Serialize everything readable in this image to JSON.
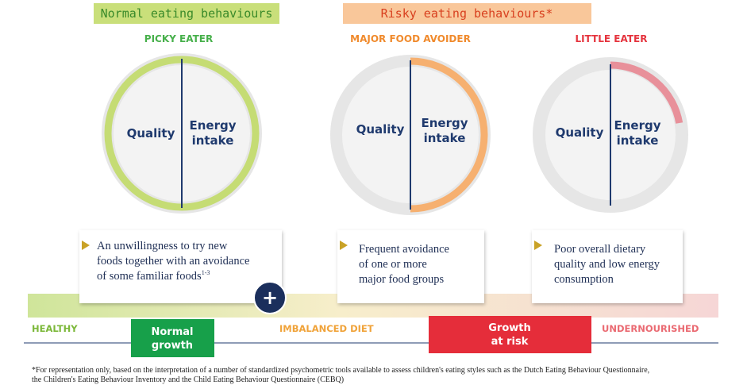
{
  "banners": {
    "normal": "Normal eating behaviours",
    "risky": "Risky eating behaviours*"
  },
  "profiles": [
    {
      "title": "PICKY EATER",
      "quality": "Quality",
      "energy": [
        "Energy",
        "intake"
      ],
      "description": [
        "An unwillingness to try new",
        "foods together with an avoidance",
        "of some familiar foods"
      ],
      "superscript": "1-3"
    },
    {
      "title": "MAJOR FOOD AVOIDER",
      "quality": "Quality",
      "energy": [
        "Energy",
        "intake"
      ],
      "description": [
        "Frequent avoidance",
        "of one or more",
        "major food groups"
      ]
    },
    {
      "title": "LITTLE EATER",
      "quality": "Quality",
      "energy": [
        "Energy",
        "intake"
      ],
      "description": [
        "Poor overall dietary",
        "quality and low energy",
        "consumption"
      ]
    }
  ],
  "plus": "+",
  "scale": {
    "healthy": "HEALTHY",
    "normal_growth": [
      "Normal",
      "growth"
    ],
    "imbalanced": "IMBALANCED DIET",
    "growth_at_risk": [
      "Growth",
      "at risk"
    ],
    "undernourished": "UNDERNOURISHED"
  },
  "footnote": [
    "*For representation only, based on the interpretation of a number of standardized psychometric tools available to assess children's eating styles such as the Dutch Eating Behaviour Questionnaire,",
    "the Children's Eating Behaviour Inventory and the Child Eating Behaviour Questionnaire (CEBQ)"
  ]
}
